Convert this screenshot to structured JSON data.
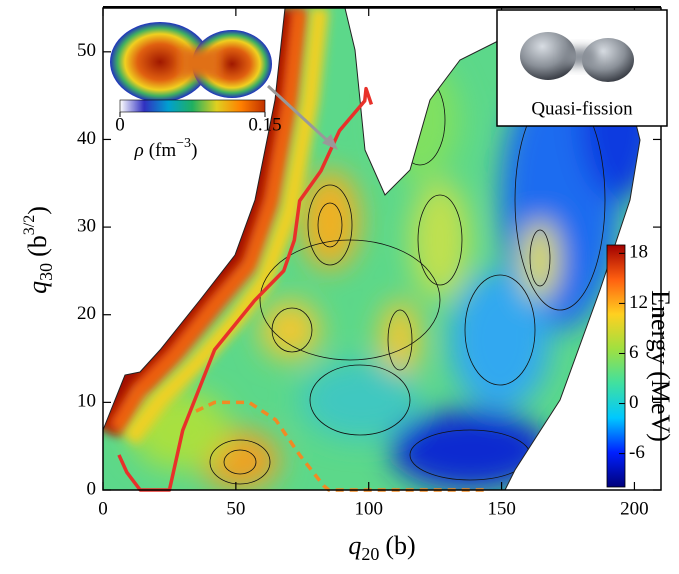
{
  "chart_data": {
    "type": "line",
    "xlabel_symbol": "q",
    "xlabel_sub": "20",
    "xlabel_unit": "(b)",
    "ylabel_symbol": "q",
    "ylabel_sub": "30",
    "ylabel_unit": "(b",
    "ylabel_sup": "3/2",
    "ylabel_close": ")",
    "xlim": [
      0,
      210
    ],
    "ylim": [
      0,
      55
    ],
    "xticks": [
      0,
      50,
      100,
      150,
      200
    ],
    "yticks": [
      0,
      10,
      20,
      30,
      40,
      50
    ],
    "series": [
      {
        "color": "#e8312a",
        "dash": "solid",
        "x": [
          6,
          9,
          14,
          25,
          30,
          42,
          57,
          68,
          72,
          74,
          82,
          89,
          98.5,
          99,
          101
        ],
        "values": [
          4,
          2,
          0,
          0,
          6.8,
          16,
          21.6,
          25,
          28.5,
          33,
          36.4,
          41,
          44.4,
          45.8,
          44
        ]
      },
      {
        "color": "#f08a24",
        "dash": "dashed",
        "x": [
          35,
          42,
          55,
          65,
          74,
          83,
          85,
          145
        ],
        "values": [
          9,
          10,
          10,
          8,
          4,
          0.5,
          0,
          0
        ]
      }
    ],
    "colorbar": {
      "label": "Energy (MeV)",
      "lim": [
        -10,
        19
      ],
      "ticks": [
        -6,
        0,
        6,
        12,
        18
      ],
      "colors": [
        "#00007a",
        "#0020ff",
        "#00c8ff",
        "#40e0a0",
        "#a0e040",
        "#ffd020",
        "#ff6010",
        "#a00000"
      ]
    },
    "inset_density": {
      "label_symbol": "ρ",
      "label_unit": "(fm",
      "label_sup": "−3",
      "label_close": ")",
      "lim": [
        0,
        0.15
      ],
      "ticks": [
        0,
        0.15
      ],
      "colors": [
        "#ffffff",
        "#3030c0",
        "#00a0d0",
        "#20b060",
        "#e0d020",
        "#ff8000",
        "#c03000"
      ]
    },
    "inset_shape": {
      "label": "Quasi-fission"
    }
  }
}
